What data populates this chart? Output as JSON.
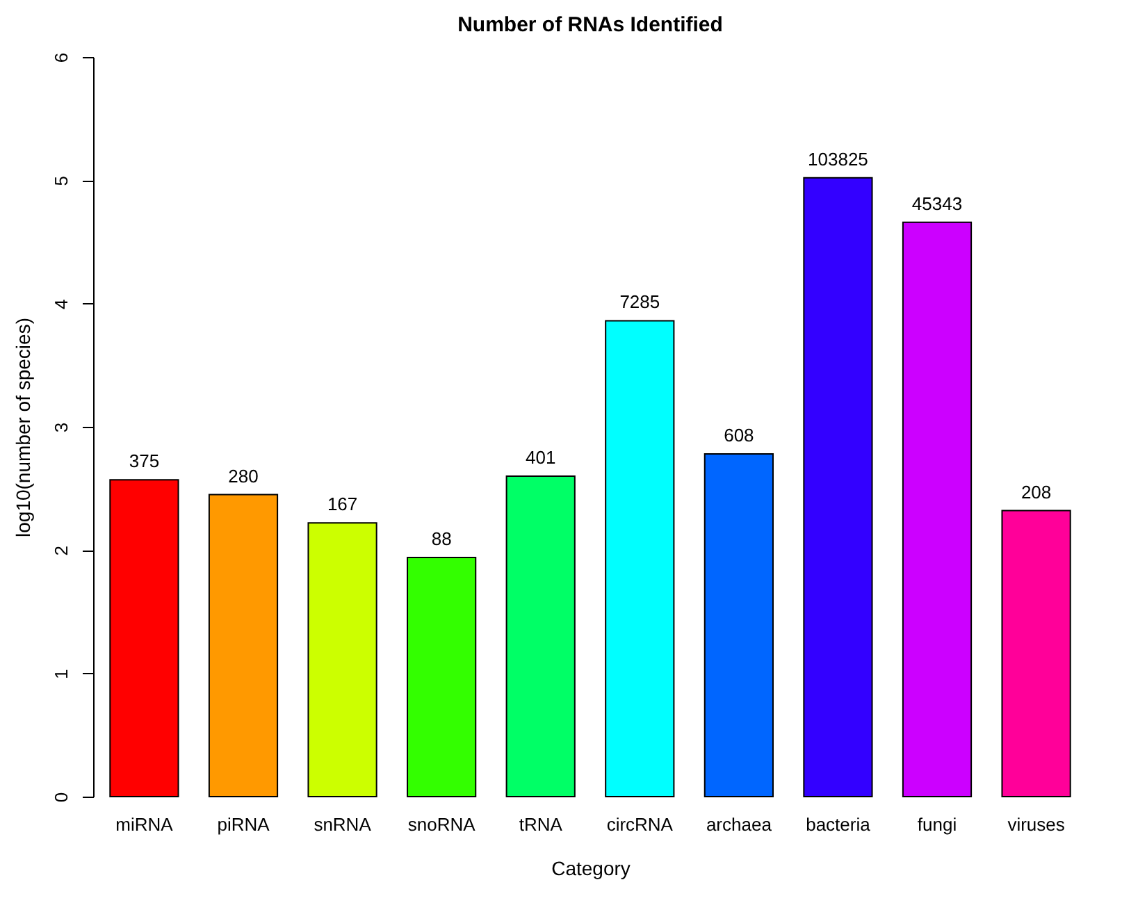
{
  "chart_data": {
    "type": "bar",
    "title": "Number of RNAs Identified",
    "xlabel": "Category",
    "ylabel": "log10(number of species)",
    "categories": [
      "miRNA",
      "piRNA",
      "snRNA",
      "snoRNA",
      "tRNA",
      "circRNA",
      "archaea",
      "bacteria",
      "fungi",
      "viruses"
    ],
    "values": [
      2.57,
      2.45,
      2.22,
      1.94,
      2.6,
      3.86,
      2.78,
      5.02,
      4.66,
      2.32
    ],
    "colors": [
      "#ff0000",
      "#ff9900",
      "#ccff00",
      "#33ff00",
      "#00ff66",
      "#00ffff",
      "#0066ff",
      "#3300ff",
      "#cc00ff",
      "#ff0099"
    ],
    "annotations": [
      {
        "text": "375",
        "x": "miRNA",
        "y": 2.57
      },
      {
        "text": "280",
        "x": "piRNA",
        "y": 2.45
      },
      {
        "text": "167",
        "x": "snRNA",
        "y": 2.22
      },
      {
        "text": "88",
        "x": "snoRNA",
        "y": 1.94
      },
      {
        "text": "401",
        "x": "tRNA",
        "y": 2.6
      },
      {
        "text": "7285",
        "x": "circRNA",
        "y": 3.86
      },
      {
        "text": "608",
        "x": "archaea",
        "y": 2.78
      },
      {
        "text": "103825",
        "x": "bacteria",
        "y": 5.02
      },
      {
        "text": "45343",
        "x": "fungi",
        "y": 4.66
      },
      {
        "text": "208",
        "x": "viruses",
        "y": 2.32
      }
    ],
    "ylim": [
      0,
      6
    ],
    "yticks": [
      0,
      1,
      2,
      3,
      4,
      5,
      6
    ],
    "grid": false,
    "legend": false
  }
}
